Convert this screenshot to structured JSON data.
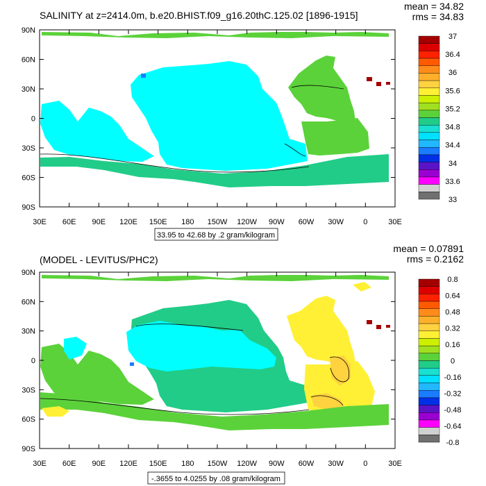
{
  "colors": {
    "ocean_white": "#ffffff",
    "land_top": "#00ffff",
    "frame": "#000000"
  },
  "chart_data": [
    {
      "type": "heatmap",
      "title": "SALINITY at z=2414.0m, b.e20.BHIST.f09_g16.20thC.125.02 [1896-1915]",
      "mean_label": "mean = 34.82",
      "rms_label": "rms = 34.83",
      "x_ticks": [
        "30E",
        "60E",
        "90E",
        "120E",
        "150E",
        "180",
        "150W",
        "120W",
        "90W",
        "60W",
        "30W",
        "0",
        "30E"
      ],
      "y_ticks": [
        "90N",
        "60N",
        "30N",
        "0",
        "30S",
        "60S",
        "90S"
      ],
      "contour_info": "33.95 to 42.68 by .2 gram/kilogram",
      "colorbar": {
        "labels": [
          "37",
          "36.4",
          "36",
          "35.6",
          "35.2",
          "34.8",
          "34.4",
          "34",
          "33.6",
          "33"
        ],
        "levels": [
          37,
          36.8,
          36.6,
          36.4,
          36.2,
          36.0,
          35.8,
          35.6,
          35.4,
          35.2,
          35.0,
          34.8,
          34.6,
          34.4,
          34.2,
          34.0,
          33.8,
          33.6,
          33.4,
          33.2,
          33.0
        ],
        "colors": [
          "#a50000",
          "#dd0000",
          "#ff2200",
          "#ff5a00",
          "#ff8c1a",
          "#ffb02a",
          "#ffd23f",
          "#fff035",
          "#ccf000",
          "#a0e020",
          "#5bd23a",
          "#21cc88",
          "#19e0d0",
          "#00e0ff",
          "#22b8ff",
          "#1a7cff",
          "#0030e6",
          "#5a14c8",
          "#9b00d2",
          "#ff00ff",
          "#d0d0d0",
          "#707070"
        ]
      },
      "fields": {
        "pacific": "#00ffff",
        "atlantic_north": "#5bd23a",
        "atlantic_south": "#5bd23a",
        "southern_ocean": "#21cc88",
        "indian": "#00ffff",
        "arctic": "#5bd23a",
        "med": "#a50000"
      }
    },
    {
      "type": "heatmap",
      "title": "(MODEL - LEVITUS/PHC2)",
      "mean_label": "mean = 0.07891",
      "rms_label": "rms = 0.2162",
      "x_ticks": [
        "30E",
        "60E",
        "90E",
        "120E",
        "150E",
        "180",
        "150W",
        "120W",
        "90W",
        "60W",
        "30W",
        "0",
        "30E"
      ],
      "y_ticks": [
        "90N",
        "60N",
        "30N",
        "0",
        "30S",
        "60S",
        "90S"
      ],
      "contour_info": "-.3655 to 4.0255 by .08 gram/kilogram",
      "colorbar": {
        "labels": [
          "0.8",
          "0.64",
          "0.48",
          "0.32",
          "0.16",
          "0",
          "-0.16",
          "-0.32",
          "-0.48",
          "-0.64",
          "-0.8"
        ],
        "levels": [
          0.8,
          0.72,
          0.64,
          0.56,
          0.48,
          0.4,
          0.32,
          0.24,
          0.16,
          0.08,
          0,
          -0.08,
          -0.16,
          -0.24,
          -0.32,
          -0.4,
          -0.48,
          -0.56,
          -0.64,
          -0.72,
          -0.8
        ],
        "colors": [
          "#a50000",
          "#dd0000",
          "#ff2200",
          "#ff5a00",
          "#ff8c1a",
          "#ffb02a",
          "#ffd23f",
          "#fff035",
          "#ccf000",
          "#a0e020",
          "#5bd23a",
          "#21cc88",
          "#19e0d0",
          "#00e0ff",
          "#22b8ff",
          "#1a7cff",
          "#0030e6",
          "#5a14c8",
          "#9b00d2",
          "#ff00ff",
          "#d0d0d0",
          "#707070"
        ]
      },
      "fields": {
        "pacific": "#21cc88",
        "atlantic_north": "#fff035",
        "atlantic_south": "#fff035",
        "southern_ocean": "#5bd23a",
        "indian": "#5bd23a",
        "arctic": "#5bd23a",
        "med": "#a50000",
        "pacific_center": "#00ffff",
        "atl_patch": "#ffd23f"
      }
    }
  ]
}
